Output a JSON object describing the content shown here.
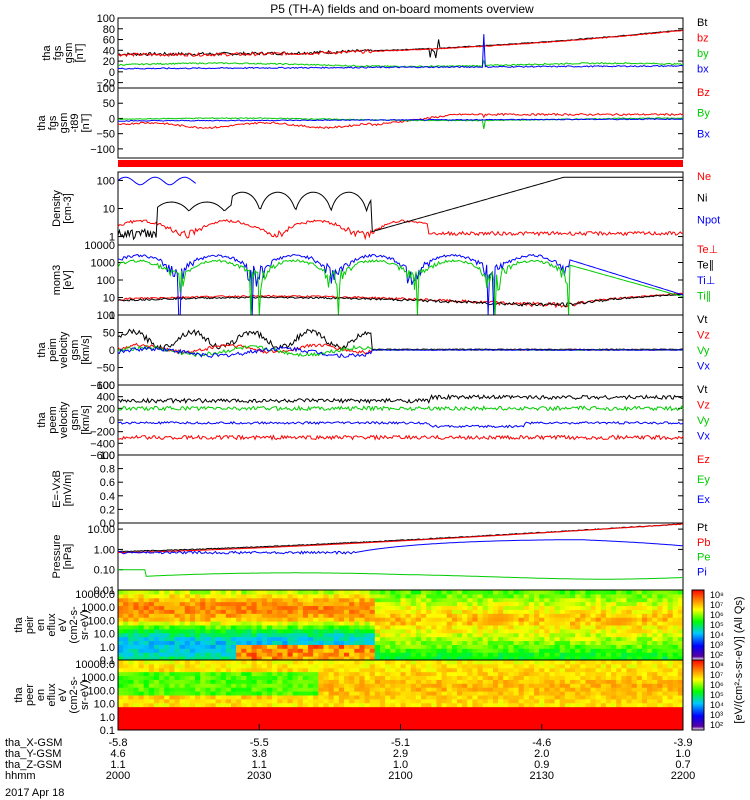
{
  "title": "P5 (TH-A) fields and on-board moments overview",
  "date_label": "2017 Apr 18",
  "x_axis": {
    "rows": [
      {
        "label": "tha_X-GSM",
        "values": [
          "-5.8",
          "-5.5",
          "-5.1",
          "-4.6",
          "-3.9"
        ]
      },
      {
        "label": "tha_Y-GSM",
        "values": [
          "4.6",
          "3.8",
          "2.9",
          "2.0",
          "1.0"
        ]
      },
      {
        "label": "tha_Z-GSM",
        "values": [
          "1.1",
          "1.1",
          "1.0",
          "0.9",
          "0.7"
        ]
      },
      {
        "label": "hhmm",
        "values": [
          "2000",
          "2030",
          "2100",
          "2130",
          "2200"
        ]
      }
    ]
  },
  "colorbar_label": "[eV/(cm²-s-sr-eV)] (All Qs)",
  "colorbars": [
    {
      "ticks": [
        "10⁸",
        "10⁷",
        "10⁶",
        "10⁵",
        "10⁴",
        "10³",
        "10²"
      ]
    },
    {
      "ticks": [
        "10⁸",
        "10⁷",
        "10⁶",
        "10⁵",
        "10⁴",
        "10³",
        "10²"
      ]
    }
  ],
  "chart_data": [
    {
      "type": "line",
      "ylabel": [
        "tha",
        "fgs",
        "gsm",
        "[nT]"
      ],
      "yticks": [
        "100",
        "80",
        "60",
        "40",
        "20",
        "0",
        "−20"
      ],
      "ylim": [
        -30,
        100
      ],
      "series": [
        {
          "name": "Bt",
          "color": "#000000"
        },
        {
          "name": "bz",
          "color": "#ff0000"
        },
        {
          "name": "by",
          "color": "#00cc00"
        },
        {
          "name": "bx",
          "color": "#0000ff"
        }
      ]
    },
    {
      "type": "line",
      "ylabel": [
        "tha",
        "fgs",
        "gsm",
        "-t89",
        "[nT]"
      ],
      "yticks": [
        "100",
        "50",
        "0",
        "−50",
        "−100"
      ],
      "ylim": [
        -130,
        100
      ],
      "series": [
        {
          "name": "Bz",
          "color": "#ff0000"
        },
        {
          "name": "By",
          "color": "#00cc00"
        },
        {
          "name": "Bx",
          "color": "#0000ff"
        }
      ]
    },
    {
      "type": "line",
      "ylabel": [
        "Density",
        "[cm-3]"
      ],
      "yticks": [
        "100",
        "10",
        "1"
      ],
      "ylim": [
        0.5,
        200
      ],
      "log": true,
      "series": [
        {
          "name": "Ne",
          "color": "#ff0000"
        },
        {
          "name": "Ni",
          "color": "#000000"
        },
        {
          "name": "Npot",
          "color": "#0000ff"
        }
      ]
    },
    {
      "type": "line",
      "ylabel": [
        "mom3",
        "[eV]"
      ],
      "yticks": [
        "10000",
        "1000",
        "100",
        "10",
        "1"
      ],
      "ylim": [
        1,
        10000
      ],
      "log": true,
      "series": [
        {
          "name": "Te⊥",
          "color": "#ff0000"
        },
        {
          "name": "Te∥",
          "color": "#000000"
        },
        {
          "name": "Ti⊥",
          "color": "#0000ff"
        },
        {
          "name": "Ti∥",
          "color": "#00cc00"
        }
      ]
    },
    {
      "type": "line",
      "ylabel": [
        "tha",
        "peim",
        "velocity",
        "gsm",
        "[km/s]"
      ],
      "yticks": [
        "100",
        "50",
        "0",
        "−50",
        "−100"
      ],
      "ylim": [
        -100,
        100
      ],
      "series": [
        {
          "name": "Vt",
          "color": "#000000"
        },
        {
          "name": "Vz",
          "color": "#ff0000"
        },
        {
          "name": "Vy",
          "color": "#00cc00"
        },
        {
          "name": "Vx",
          "color": "#0000ff"
        }
      ]
    },
    {
      "type": "line",
      "ylabel": [
        "tha",
        "peem",
        "velocity",
        "gsm",
        "[km/s]"
      ],
      "yticks": [
        "600",
        "400",
        "200",
        "0",
        "−200",
        "−400",
        "−600"
      ],
      "ylim": [
        -600,
        600
      ],
      "series": [
        {
          "name": "Vt",
          "color": "#000000"
        },
        {
          "name": "Vz",
          "color": "#ff0000"
        },
        {
          "name": "Vy",
          "color": "#00cc00"
        },
        {
          "name": "Vx",
          "color": "#0000ff"
        }
      ]
    },
    {
      "type": "line",
      "ylabel": [
        "E=-VxB",
        "[mV/m]"
      ],
      "yticks": [
        "1.0",
        "0.8",
        "0.6",
        "0.4",
        "0.2",
        "0.0"
      ],
      "ylim": [
        0,
        1
      ],
      "series": [
        {
          "name": "Ez",
          "color": "#ff0000"
        },
        {
          "name": "Ey",
          "color": "#00cc00"
        },
        {
          "name": "Ex",
          "color": "#0000ff"
        }
      ]
    },
    {
      "type": "line",
      "ylabel": [
        "Pressure",
        "[nPa]"
      ],
      "yticks": [
        "10.00",
        "1.00",
        "0.10",
        "0.01"
      ],
      "ylim": [
        0.01,
        20
      ],
      "log": true,
      "series": [
        {
          "name": "Pt",
          "color": "#000000"
        },
        {
          "name": "Pb",
          "color": "#ff0000"
        },
        {
          "name": "Pe",
          "color": "#00cc00"
        },
        {
          "name": "Pi",
          "color": "#0000ff"
        }
      ]
    },
    {
      "type": "heatmap",
      "ylabel": [
        "tha",
        "peir",
        "en",
        "eflux",
        "eV",
        "(cm2-s-",
        "sr-eV)"
      ],
      "yticks": [
        "10000.0",
        "1000.0",
        "100.0",
        "10.0",
        "1.0",
        "0.1"
      ],
      "ylim": [
        0.1,
        20000
      ],
      "log": true
    },
    {
      "type": "heatmap",
      "ylabel": [
        "tha",
        "peer",
        "en",
        "eflux",
        "eV",
        "(cm2-s-",
        "sr-eV)"
      ],
      "yticks": [
        "10000.0",
        "1000.0",
        "100.0",
        "10.0",
        "1.0",
        "0.1"
      ],
      "ylim": [
        0.1,
        20000
      ],
      "log": true
    }
  ]
}
